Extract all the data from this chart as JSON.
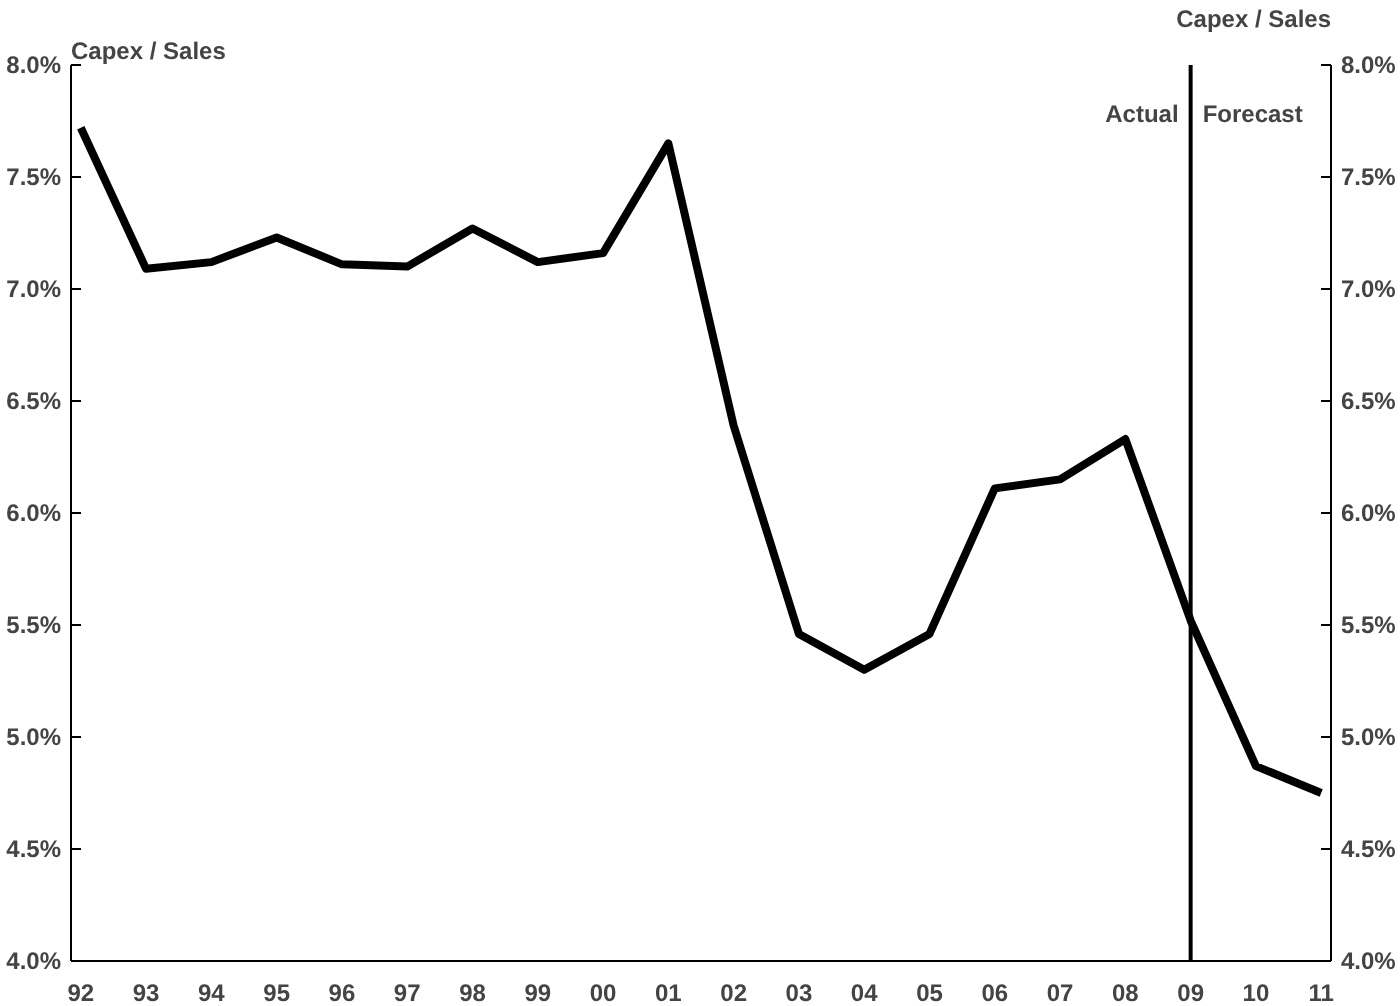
{
  "chart_data": {
    "type": "line",
    "ylabel": "Capex / Sales",
    "y2label": "Capex / Sales",
    "categories": [
      "92",
      "93",
      "94",
      "95",
      "96",
      "97",
      "98",
      "99",
      "00",
      "01",
      "02",
      "03",
      "04",
      "05",
      "06",
      "07",
      "08",
      "09",
      "10",
      "11"
    ],
    "series": [
      {
        "color": "#000000",
        "values": [
          7.72,
          7.09,
          7.12,
          7.23,
          7.11,
          7.1,
          7.27,
          7.12,
          7.16,
          7.65,
          6.39,
          5.46,
          5.3,
          5.46,
          6.11,
          6.15,
          6.33,
          5.52,
          4.87,
          4.75
        ]
      }
    ],
    "ylim": [
      4.0,
      8.0
    ],
    "yticks": [
      {
        "value": 4.0,
        "label": "4.0%"
      },
      {
        "value": 4.5,
        "label": "4.5%"
      },
      {
        "value": 5.0,
        "label": "5.0%"
      },
      {
        "value": 5.5,
        "label": "5.5%"
      },
      {
        "value": 6.0,
        "label": "6.0%"
      },
      {
        "value": 6.5,
        "label": "6.5%"
      },
      {
        "value": 7.0,
        "label": "7.0%"
      },
      {
        "value": 7.5,
        "label": "7.5%"
      },
      {
        "value": 8.0,
        "label": "8.0%"
      }
    ],
    "y2lim": [
      4.0,
      8.0
    ],
    "y2ticks": [
      {
        "value": 4.0,
        "label": "4.0%"
      },
      {
        "value": 4.5,
        "label": "4.5%"
      },
      {
        "value": 5.0,
        "label": "5.0%"
      },
      {
        "value": 5.5,
        "label": "5.5%"
      },
      {
        "value": 6.0,
        "label": "6.0%"
      },
      {
        "value": 6.5,
        "label": "6.5%"
      },
      {
        "value": 7.0,
        "label": "7.0%"
      },
      {
        "value": 7.5,
        "label": "7.5%"
      },
      {
        "value": 8.0,
        "label": "8.0%"
      }
    ],
    "ref_lines": [
      {
        "axis": "x",
        "value": "09",
        "color": "#000000"
      }
    ],
    "annotations": [
      {
        "text": "Actual",
        "x": "09",
        "y": 7.78
      },
      {
        "text": "Forecast",
        "x": "09",
        "y": 7.78
      }
    ],
    "grid": false,
    "marker": "none",
    "line_style": "solid"
  }
}
